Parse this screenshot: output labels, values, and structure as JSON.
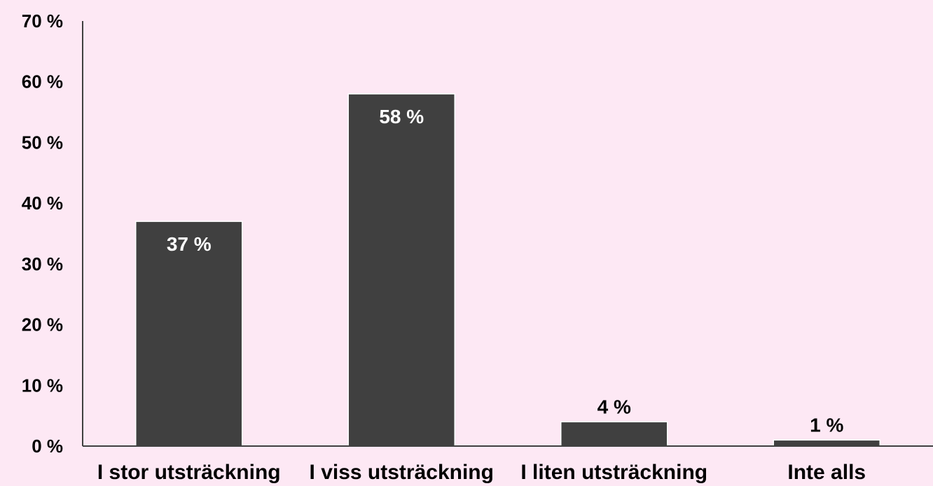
{
  "chart_data": {
    "type": "bar",
    "categories": [
      "I stor utsträckning",
      "I viss utsträckning",
      "I liten utsträckning",
      "Inte alls"
    ],
    "values": [
      37,
      58,
      4,
      1
    ],
    "data_labels": [
      "37 %",
      "58 %",
      "4 %",
      "1 %"
    ],
    "ytick_values": [
      0,
      10,
      20,
      30,
      40,
      50,
      60,
      70
    ],
    "ytick_labels": [
      "0 %",
      "10 %",
      "20 %",
      "30 %",
      "40 %",
      "50 %",
      "60 %",
      "70 %"
    ],
    "ylim": [
      0,
      70
    ],
    "grid": false,
    "title": "",
    "xlabel": "",
    "ylabel": "",
    "colors": {
      "background": "#fde8f4",
      "bar": "#404040",
      "axis": "#404040",
      "label_inside": "#ffffff",
      "label_outside": "#000000"
    }
  }
}
